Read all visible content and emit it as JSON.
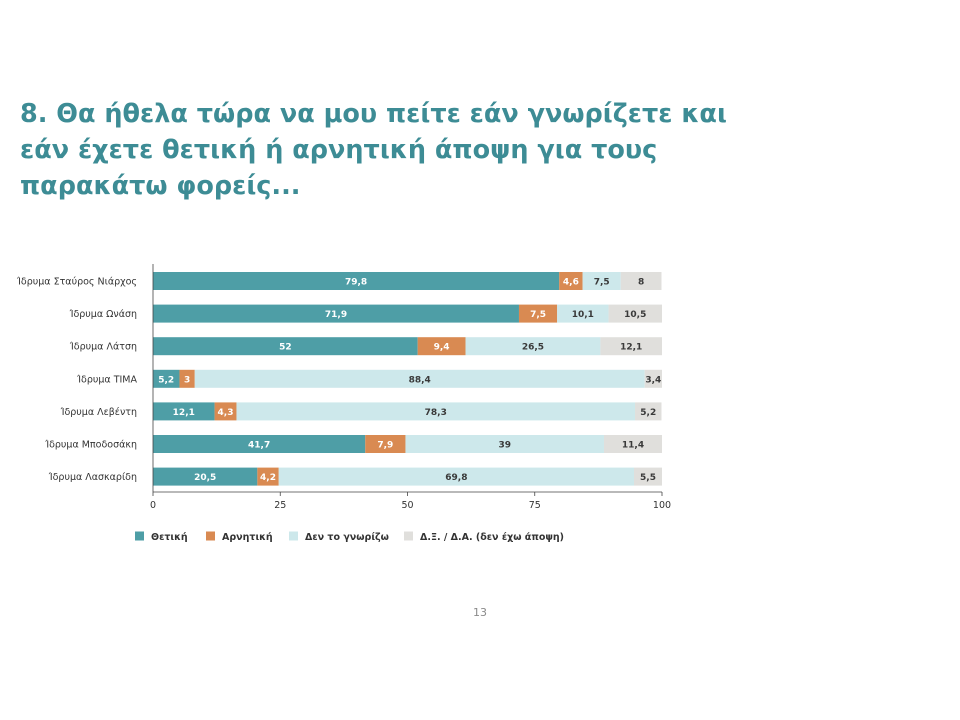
{
  "title": "8. Θα ήθελα τώρα να μου πείτε εάν γνωρίζετε και εάν έχετε θετική ή αρνητική άποψη για τους παρακάτω φορείς...",
  "page_number": "13",
  "colors": {
    "positive": "#4e9ea6",
    "negative": "#d98a52",
    "dont_know": "#cde8eb",
    "no_opinion": "#e0dfdc",
    "title": "#3d8c95"
  },
  "chart_data": {
    "type": "bar",
    "orientation": "horizontal",
    "stacked": true,
    "categories": [
      "Ίδρυμα Σταύρος Νιάρχος",
      "Ίδρυμα Ωνάση",
      "Ίδρυμα Λάτση",
      "Ίδρυμα ΤΙΜΑ",
      "Ίδρυμα Λεβέντη",
      "Ίδρυμα Μποδοσάκη",
      "Ίδρυμα Λασκαρίδη"
    ],
    "series": [
      {
        "name": "Θετική",
        "color": "#4e9ea6",
        "values": [
          79.8,
          71.9,
          52,
          5.2,
          12.1,
          41.7,
          20.5
        ],
        "labels": [
          "79,8",
          "71,9",
          "52",
          "5,2",
          "12,1",
          "41,7",
          "20,5"
        ]
      },
      {
        "name": "Αρνητική",
        "color": "#d98a52",
        "values": [
          4.6,
          7.5,
          9.4,
          3,
          4.3,
          7.9,
          4.2
        ],
        "labels": [
          "4,6",
          "7,5",
          "9,4",
          "3",
          "4,3",
          "7,9",
          "4,2"
        ]
      },
      {
        "name": "Δεν το γνωρίζω",
        "color": "#cde8eb",
        "values": [
          7.5,
          10.1,
          26.5,
          88.4,
          78.3,
          39,
          69.8
        ],
        "labels": [
          "7,5",
          "10,1",
          "26,5",
          "88,4",
          "78,3",
          "39",
          "69,8"
        ]
      },
      {
        "name": "Δ.Ξ. / Δ.Α. (δεν έχω άποψη)",
        "color": "#e0dfdc",
        "values": [
          8,
          10.5,
          12.1,
          3.4,
          5.2,
          11.4,
          5.5
        ],
        "labels": [
          "8",
          "10,5",
          "12,1",
          "3,4",
          "5,2",
          "11,4",
          "5,5"
        ]
      }
    ],
    "xlim": [
      0,
      100
    ],
    "xticks": [
      "0",
      "25",
      "50",
      "75",
      "100"
    ],
    "legend_position": "bottom",
    "grid": false
  }
}
